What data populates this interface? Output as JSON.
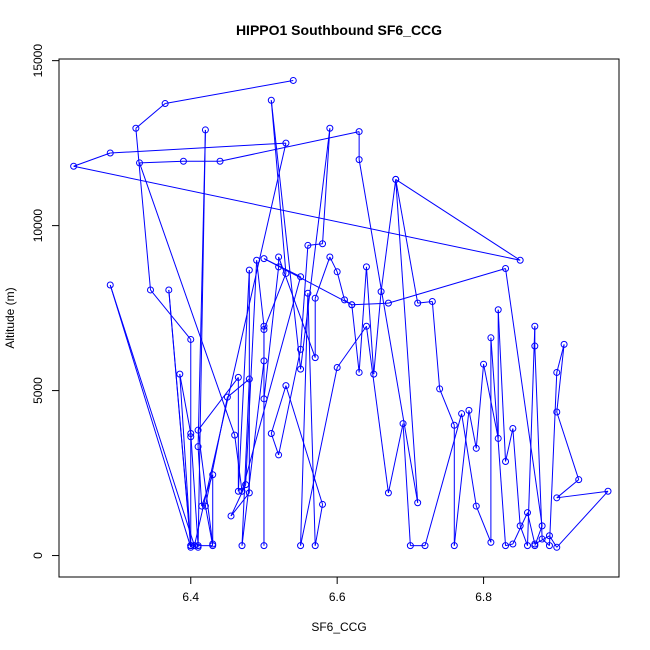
{
  "chart_data": {
    "type": "line",
    "title": "HIPPO1 Southbound SF6_CCG",
    "xlabel": "SF6_CCG",
    "ylabel": "Altitude (m)",
    "xlim": [
      6.22,
      6.985
    ],
    "ylim": [
      -650,
      15050
    ],
    "x_ticks": [
      6.4,
      6.6,
      6.8
    ],
    "y_ticks": [
      0,
      5000,
      10000,
      15000
    ],
    "grid": false,
    "legend": "none",
    "series": [
      {
        "color": "#0000ff",
        "marker": "open-circle",
        "points": [
          [
            6.54,
            14400
          ],
          [
            6.365,
            13700
          ],
          [
            6.325,
            12950
          ],
          [
            6.345,
            8050
          ],
          [
            6.4,
            6550
          ],
          [
            6.4,
            3600
          ],
          [
            6.4,
            300
          ],
          [
            6.41,
            250
          ],
          [
            6.42,
            12900
          ],
          [
            6.41,
            3300
          ],
          [
            6.415,
            1500
          ],
          [
            6.43,
            2450
          ],
          [
            6.43,
            350
          ],
          [
            6.41,
            3800
          ],
          [
            6.465,
            5400
          ],
          [
            6.465,
            1950
          ],
          [
            6.48,
            8650
          ],
          [
            6.48,
            1900
          ],
          [
            6.455,
            1200
          ],
          [
            6.475,
            2150
          ],
          [
            6.49,
            8950
          ],
          [
            6.5,
            6950
          ],
          [
            6.5,
            300
          ],
          [
            6.5,
            4750
          ],
          [
            6.52,
            8750
          ],
          [
            6.52,
            9050
          ],
          [
            6.57,
            6000
          ],
          [
            6.57,
            7800
          ],
          [
            6.59,
            9050
          ],
          [
            6.6,
            8600
          ],
          [
            6.61,
            7750
          ],
          [
            6.62,
            7600
          ],
          [
            6.63,
            5550
          ],
          [
            6.64,
            8750
          ],
          [
            6.65,
            5500
          ],
          [
            6.66,
            8000
          ],
          [
            6.68,
            11400
          ],
          [
            6.71,
            7650
          ],
          [
            6.73,
            7700
          ],
          [
            6.74,
            5050
          ],
          [
            6.76,
            3950
          ],
          [
            6.76,
            300
          ],
          [
            6.78,
            4400
          ],
          [
            6.79,
            3250
          ],
          [
            6.8,
            5800
          ],
          [
            6.82,
            3550
          ],
          [
            6.82,
            7450
          ],
          [
            6.83,
            2850
          ],
          [
            6.84,
            3850
          ],
          [
            6.85,
            900
          ],
          [
            6.86,
            300
          ],
          [
            6.87,
            6950
          ],
          [
            6.87,
            6350
          ],
          [
            6.88,
            500
          ],
          [
            6.89,
            300
          ],
          [
            6.9,
            5550
          ],
          [
            6.91,
            6400
          ],
          [
            6.9,
            4350
          ],
          [
            6.93,
            2300
          ],
          [
            6.9,
            1750
          ],
          [
            6.97,
            1950
          ],
          [
            6.9,
            250
          ],
          [
            6.89,
            600
          ],
          [
            6.87,
            350
          ],
          [
            6.86,
            1300
          ],
          [
            6.84,
            350
          ],
          [
            6.83,
            300
          ],
          [
            6.81,
            6600
          ],
          [
            6.81,
            400
          ],
          [
            6.79,
            1500
          ],
          [
            6.77,
            4300
          ],
          [
            6.72,
            300
          ],
          [
            6.7,
            300
          ],
          [
            6.69,
            4000
          ],
          [
            6.67,
            1900
          ],
          [
            6.64,
            6950
          ],
          [
            6.6,
            5700
          ],
          [
            6.55,
            300
          ],
          [
            6.56,
            7950
          ],
          [
            6.57,
            300
          ],
          [
            6.58,
            1550
          ],
          [
            6.53,
            5150
          ],
          [
            6.51,
            3700
          ],
          [
            6.52,
            3050
          ],
          [
            6.55,
            6250
          ],
          [
            6.56,
            9400
          ],
          [
            6.58,
            9450
          ],
          [
            6.59,
            12950
          ],
          [
            6.55,
            5650
          ],
          [
            6.51,
            13800
          ],
          [
            6.53,
            8550
          ],
          [
            6.5,
            6850
          ],
          [
            6.5,
            5900
          ],
          [
            6.47,
            300
          ],
          [
            6.48,
            5350
          ],
          [
            6.45,
            4800
          ],
          [
            6.42,
            1500
          ],
          [
            6.43,
            300
          ],
          [
            6.41,
            300
          ],
          [
            6.4,
            3700
          ],
          [
            6.385,
            5500
          ],
          [
            6.4,
            300
          ],
          [
            6.37,
            8050
          ],
          [
            6.4,
            250
          ],
          [
            6.29,
            8200
          ],
          [
            6.405,
            300
          ],
          [
            6.53,
            12500
          ],
          [
            6.29,
            12200
          ],
          [
            6.24,
            11800
          ],
          [
            6.85,
            8950
          ],
          [
            6.68,
            11400
          ],
          [
            6.71,
            1600
          ],
          [
            6.63,
            12000
          ],
          [
            6.63,
            12850
          ],
          [
            6.44,
            11950
          ],
          [
            6.39,
            11950
          ],
          [
            6.33,
            11900
          ],
          [
            6.46,
            3650
          ],
          [
            6.47,
            1950
          ],
          [
            6.55,
            8450
          ],
          [
            6.5,
            9000
          ],
          [
            6.62,
            7600
          ],
          [
            6.67,
            7650
          ],
          [
            6.83,
            8700
          ],
          [
            6.88,
            900
          ],
          [
            6.87,
            300
          ]
        ]
      }
    ]
  }
}
